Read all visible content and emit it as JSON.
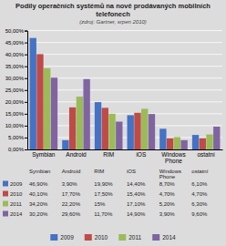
{
  "chart_data": {
    "type": "bar",
    "title": "Podíly operačních systémů na nově prodávaných mobilních telefonech",
    "subtitle": "(zdroj: Gartner, srpen 2010)",
    "categories": [
      "Symbian",
      "Android",
      "RIM",
      "iOS",
      "Windows\nPhone",
      "ostatní"
    ],
    "series": [
      {
        "name": "2009",
        "color": "#4472C4",
        "values": [
          46.9,
          3.9,
          19.9,
          14.4,
          8.7,
          6.1
        ],
        "value_labels": [
          "46,90%",
          "3,90%",
          "19,90%",
          "14,40%",
          "8,70%",
          "6,10%"
        ]
      },
      {
        "name": "2010",
        "color": "#BE4B48",
        "values": [
          40.1,
          17.7,
          17.5,
          15.4,
          4.7,
          4.7
        ],
        "value_labels": [
          "40,10%",
          "17,70%",
          "17,50%",
          "15,40%",
          "4,70%",
          "4,70%"
        ]
      },
      {
        "name": "2011",
        "color": "#9BBB59",
        "values": [
          34.2,
          22.2,
          15.0,
          17.1,
          5.2,
          6.3
        ],
        "value_labels": [
          "34,20%",
          "22,20%",
          "15%",
          "17,10%",
          "5,20%",
          "6,30%"
        ]
      },
      {
        "name": "2014",
        "color": "#8064A2",
        "values": [
          30.2,
          29.6,
          11.7,
          14.9,
          3.9,
          9.6
        ],
        "value_labels": [
          "30,20%",
          "29,60%",
          "11,70%",
          "14,90%",
          "3,90%",
          "9,60%"
        ]
      }
    ],
    "ylim": [
      0,
      50
    ],
    "yticks": [
      {
        "value": 0,
        "label": "0,00%"
      },
      {
        "value": 5,
        "label": "5,00%"
      },
      {
        "value": 10,
        "label": "10,00%"
      },
      {
        "value": 15,
        "label": "15,00%"
      },
      {
        "value": 20,
        "label": "20,00%"
      },
      {
        "value": 25,
        "label": "25,00%"
      },
      {
        "value": 30,
        "label": "30,00%"
      },
      {
        "value": 35,
        "label": "35,00%"
      },
      {
        "value": 40,
        "label": "40,00%"
      },
      {
        "value": 45,
        "label": "45,00%"
      },
      {
        "value": 50,
        "label": "50,00%"
      }
    ],
    "grid": true,
    "legend": "bottom"
  }
}
